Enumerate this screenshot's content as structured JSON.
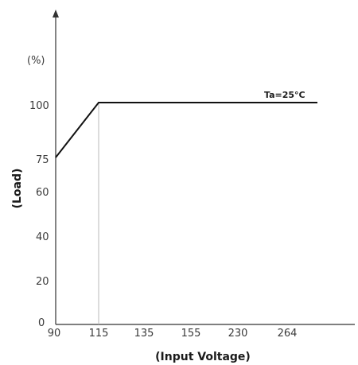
{
  "chart_data": {
    "type": "line",
    "title": "",
    "xlabel": "(Input Voltage)",
    "ylabel": "(Load)",
    "yunit_label": "(%)",
    "x_tick_labels": [
      "90",
      "115",
      "135",
      "155",
      "230",
      "264"
    ],
    "y_tick_labels": [
      "0",
      "20",
      "40",
      "60",
      "75",
      "100"
    ],
    "series": [
      {
        "x": [
          "90",
          "115",
          "264+"
        ],
        "values": [
          75,
          100,
          100
        ]
      }
    ],
    "annotations": [
      "Ta=25°C"
    ],
    "reference_line_x": "115",
    "ylim": [
      0,
      100
    ],
    "grid": false
  }
}
